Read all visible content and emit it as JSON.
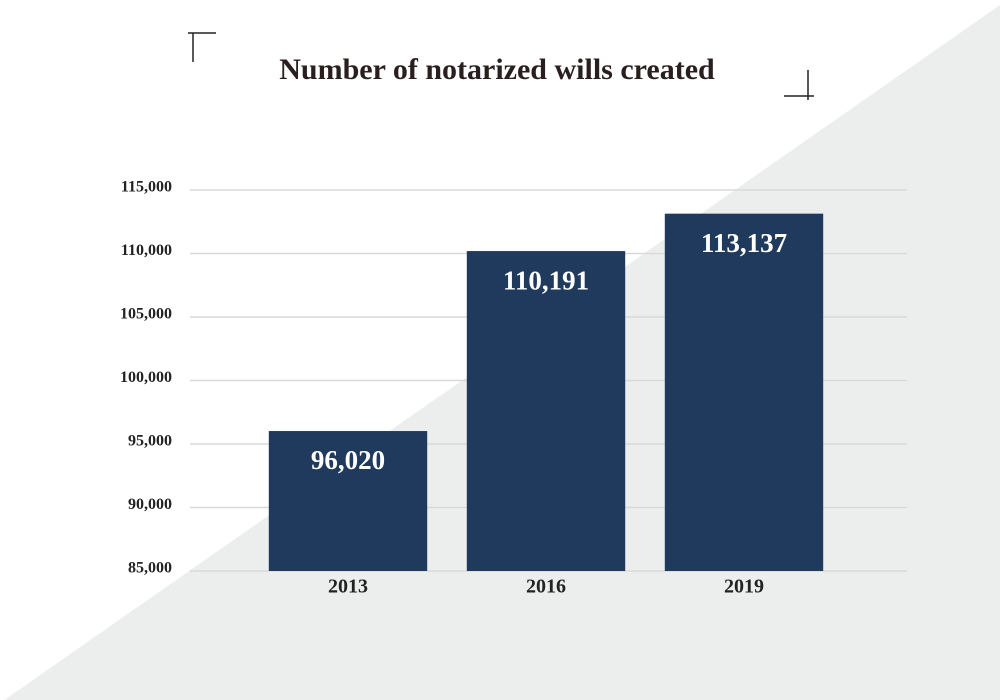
{
  "chart_data": {
    "type": "bar",
    "title": "Number of notarized wills created",
    "categories": [
      "2013",
      "2016",
      "2019"
    ],
    "values": [
      96020,
      110191,
      113137
    ],
    "value_labels": [
      "96,020",
      "110,191",
      "113,137"
    ],
    "color": "#1f3a5c",
    "ylim": [
      85000,
      115000
    ],
    "yticks": [
      {
        "value": 85000,
        "label": "85,000"
      },
      {
        "value": 90000,
        "label": "90,000"
      },
      {
        "value": 95000,
        "label": "95,000"
      },
      {
        "value": 100000,
        "label": "100,000"
      },
      {
        "value": 105000,
        "label": "105,000"
      },
      {
        "value": 110000,
        "label": "110,000"
      },
      {
        "value": 115000,
        "label": "115,000"
      }
    ],
    "grid": true
  }
}
